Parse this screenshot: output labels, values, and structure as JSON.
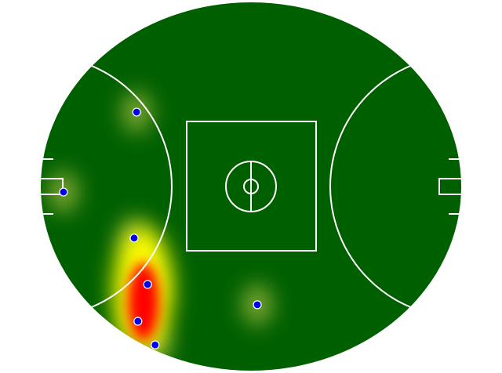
{
  "chart_data": {
    "type": "scatter",
    "x": [
      22.8,
      5.4,
      22.2,
      25.4,
      23.1,
      27.2,
      51.5
    ],
    "y": [
      70.2,
      48.5,
      36.0,
      23.4,
      13.4,
      7.0,
      17.9
    ],
    "xlim": [
      0,
      100
    ],
    "ylim": [
      0,
      100
    ],
    "color": "#0000ee"
  }
}
